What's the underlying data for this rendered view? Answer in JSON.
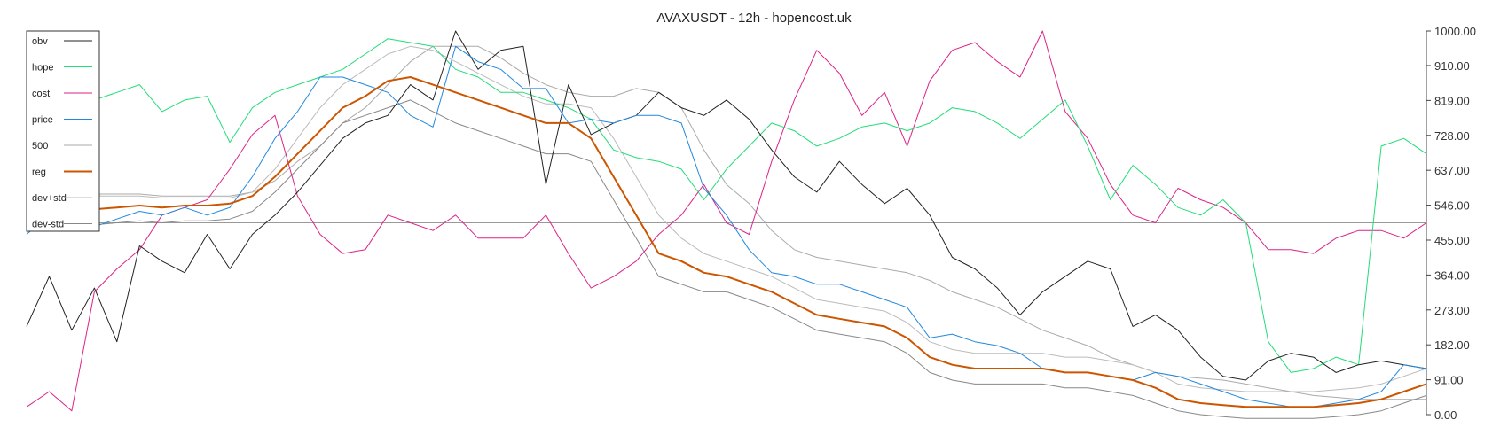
{
  "chart_data": {
    "type": "line",
    "title": "AVAXUSDT - 12h - hopencost.uk",
    "xlabel": "",
    "ylabel": "",
    "ylim": [
      0,
      1000
    ],
    "y_ticks": [
      "0.00",
      "91.00",
      "182.00",
      "273.00",
      "364.00",
      "455.00",
      "546.00",
      "637.00",
      "728.00",
      "819.00",
      "910.00",
      "1000.00"
    ],
    "y_tick_values": [
      0,
      91,
      182,
      273,
      364,
      455,
      546,
      637,
      728,
      819,
      910,
      1000
    ],
    "reference_line": 500,
    "grid": false,
    "legend_position": "top-left",
    "x": [
      0,
      5,
      10,
      15,
      20,
      25,
      30,
      35,
      40,
      45,
      50,
      55,
      60,
      65,
      70,
      75,
      80,
      85,
      90,
      95,
      100,
      105,
      110,
      115,
      120,
      125,
      130,
      135,
      140,
      145,
      150,
      155,
      160,
      165,
      170,
      175,
      180,
      185,
      190,
      195,
      200,
      205,
      210,
      215,
      220,
      225,
      230,
      235,
      240,
      245,
      250,
      255,
      260,
      265,
      270,
      275,
      280,
      285,
      290,
      295,
      300,
      305,
      310
    ],
    "series": [
      {
        "name": "obv",
        "color": "#222222",
        "width": 1,
        "values": [
          230,
          360,
          220,
          330,
          190,
          440,
          400,
          370,
          470,
          380,
          470,
          520,
          580,
          650,
          720,
          760,
          780,
          860,
          820,
          1000,
          900,
          950,
          960,
          600,
          860,
          730,
          760,
          780,
          840,
          800,
          780,
          820,
          770,
          690,
          620,
          580,
          660,
          600,
          550,
          590,
          520,
          410,
          380,
          330,
          260,
          320,
          360,
          400,
          380,
          230,
          260,
          220,
          150,
          100,
          90,
          140,
          160,
          150,
          110,
          130,
          140,
          130,
          120
        ]
      },
      {
        "name": "hope",
        "color": "#22dd77",
        "width": 1,
        "values": [
          780,
          880,
          800,
          820,
          840,
          860,
          790,
          820,
          830,
          710,
          800,
          840,
          860,
          880,
          900,
          940,
          980,
          970,
          960,
          900,
          880,
          840,
          840,
          820,
          800,
          770,
          690,
          670,
          660,
          640,
          560,
          640,
          700,
          760,
          740,
          700,
          720,
          750,
          760,
          740,
          760,
          800,
          790,
          760,
          720,
          770,
          820,
          700,
          560,
          650,
          600,
          540,
          520,
          560,
          500,
          190,
          110,
          120,
          150,
          130,
          700,
          720,
          680
        ]
      },
      {
        "name": "cost",
        "color": "#dd2288",
        "width": 1,
        "values": [
          20,
          60,
          10,
          320,
          380,
          430,
          520,
          540,
          560,
          640,
          730,
          780,
          570,
          470,
          420,
          430,
          520,
          500,
          480,
          520,
          460,
          460,
          460,
          520,
          420,
          330,
          360,
          400,
          470,
          520,
          600,
          500,
          470,
          660,
          820,
          950,
          890,
          780,
          840,
          700,
          870,
          950,
          970,
          920,
          880,
          1000,
          790,
          720,
          600,
          520,
          500,
          590,
          560,
          540,
          500,
          430,
          430,
          420,
          460,
          480,
          480,
          460,
          500
        ]
      },
      {
        "name": "price",
        "color": "#2288dd",
        "width": 1,
        "values": [
          470,
          520,
          600,
          490,
          510,
          530,
          520,
          540,
          520,
          540,
          620,
          720,
          790,
          880,
          880,
          860,
          840,
          780,
          750,
          960,
          920,
          900,
          850,
          850,
          760,
          770,
          760,
          780,
          780,
          760,
          590,
          520,
          430,
          370,
          360,
          340,
          340,
          320,
          300,
          280,
          200,
          210,
          190,
          180,
          160,
          120,
          110,
          110,
          100,
          90,
          110,
          100,
          80,
          60,
          40,
          30,
          20,
          20,
          30,
          40,
          60,
          130,
          120
        ]
      },
      {
        "name": "500",
        "color": "#aaaaaa",
        "width": 1,
        "values": [
          560,
          570,
          570,
          575,
          575,
          575,
          570,
          570,
          570,
          570,
          580,
          610,
          660,
          700,
          760,
          800,
          860,
          920,
          960,
          960,
          960,
          930,
          890,
          860,
          840,
          830,
          830,
          850,
          840,
          800,
          690,
          600,
          550,
          480,
          430,
          410,
          400,
          390,
          380,
          370,
          350,
          320,
          300,
          280,
          250,
          220,
          200,
          180,
          150,
          130,
          110,
          100,
          95,
          90,
          80,
          70,
          60,
          50,
          45,
          40,
          40,
          40,
          40
        ]
      },
      {
        "name": "reg",
        "color": "#cc5500",
        "width": 2,
        "values": [
          520,
          530,
          530,
          535,
          540,
          545,
          540,
          545,
          545,
          550,
          570,
          620,
          680,
          740,
          800,
          830,
          870,
          880,
          860,
          840,
          820,
          800,
          780,
          760,
          760,
          720,
          620,
          520,
          420,
          400,
          370,
          360,
          340,
          320,
          290,
          260,
          250,
          240,
          230,
          200,
          150,
          130,
          120,
          120,
          120,
          120,
          110,
          110,
          100,
          90,
          70,
          40,
          30,
          25,
          20,
          20,
          20,
          20,
          25,
          30,
          40,
          60,
          80
        ]
      },
      {
        "name": "dev+std",
        "color": "#bbbbbb",
        "width": 1,
        "values": [
          560,
          565,
          565,
          570,
          570,
          570,
          565,
          565,
          565,
          565,
          580,
          640,
          720,
          800,
          860,
          900,
          940,
          960,
          950,
          920,
          890,
          860,
          830,
          810,
          810,
          800,
          720,
          620,
          520,
          460,
          420,
          400,
          380,
          360,
          330,
          300,
          290,
          280,
          270,
          240,
          190,
          170,
          160,
          160,
          160,
          160,
          150,
          150,
          140,
          130,
          110,
          80,
          70,
          65,
          60,
          60,
          60,
          60,
          65,
          70,
          80,
          100,
          120
        ]
      },
      {
        "name": "dev-std",
        "color": "#888888",
        "width": 1,
        "values": [
          480,
          490,
          490,
          495,
          500,
          505,
          500,
          505,
          505,
          510,
          530,
          580,
          640,
          700,
          760,
          780,
          800,
          820,
          790,
          760,
          740,
          720,
          700,
          680,
          680,
          660,
          560,
          460,
          360,
          340,
          320,
          320,
          300,
          280,
          250,
          220,
          210,
          200,
          190,
          160,
          110,
          90,
          80,
          80,
          80,
          80,
          70,
          70,
          60,
          50,
          30,
          10,
          0,
          -5,
          -10,
          -10,
          -10,
          -10,
          -5,
          0,
          10,
          30,
          50
        ]
      }
    ]
  }
}
